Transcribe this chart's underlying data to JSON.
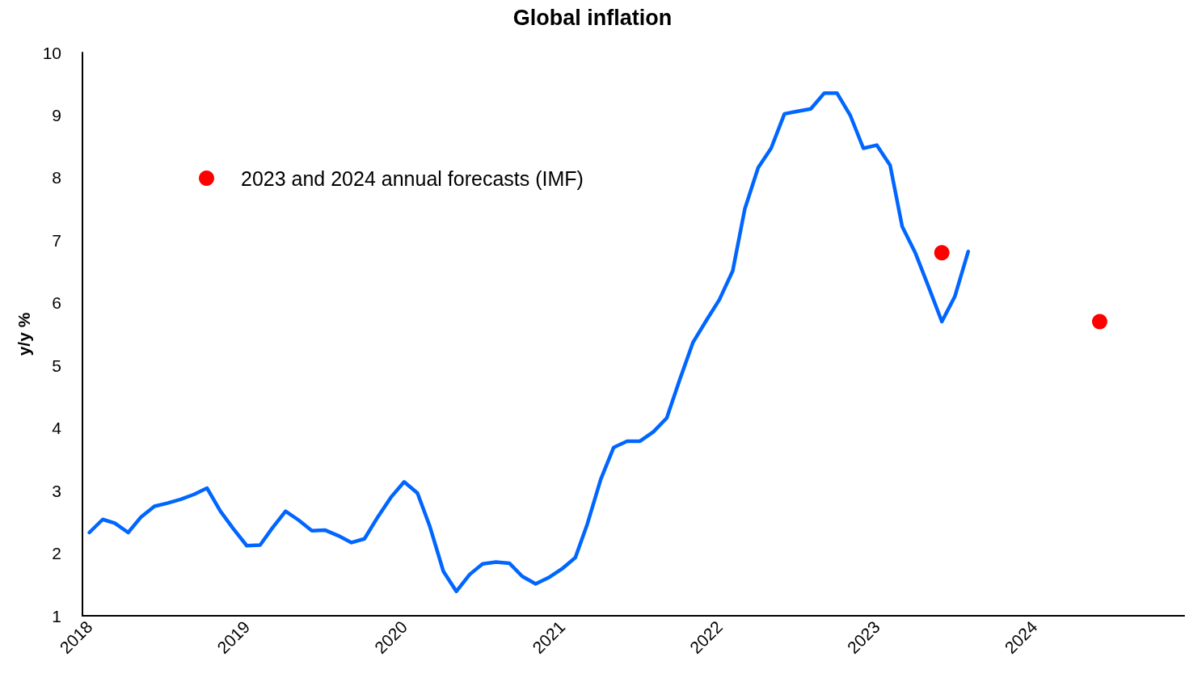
{
  "chart_data": {
    "type": "line",
    "title": "Global inflation",
    "ylabel": "y/y %",
    "x": [
      "2018-01",
      "2018-02",
      "2018-03",
      "2018-04",
      "2018-05",
      "2018-06",
      "2018-07",
      "2018-08",
      "2018-09",
      "2018-10",
      "2018-11",
      "2018-12",
      "2019-01",
      "2019-02",
      "2019-03",
      "2019-04",
      "2019-05",
      "2019-06",
      "2019-07",
      "2019-08",
      "2019-09",
      "2019-10",
      "2019-11",
      "2019-12",
      "2020-01",
      "2020-02",
      "2020-03",
      "2020-04",
      "2020-05",
      "2020-06",
      "2020-07",
      "2020-08",
      "2020-09",
      "2020-10",
      "2020-11",
      "2020-12",
      "2021-01",
      "2021-02",
      "2021-03",
      "2021-04",
      "2021-05",
      "2021-06",
      "2021-07",
      "2021-08",
      "2021-09",
      "2021-10",
      "2021-11",
      "2021-12",
      "2022-01",
      "2022-02",
      "2022-03",
      "2022-04",
      "2022-05",
      "2022-06",
      "2022-07",
      "2022-08",
      "2022-09",
      "2022-10",
      "2022-11",
      "2022-12",
      "2023-01",
      "2023-02",
      "2023-03",
      "2023-04",
      "2023-05",
      "2023-06",
      "2023-07",
      "2023-08"
    ],
    "series": [
      {
        "color": "#0066ff",
        "marker": "none",
        "values": [
          2.33,
          2.54,
          2.48,
          2.33,
          2.58,
          2.75,
          2.8,
          2.86,
          2.94,
          3.04,
          2.67,
          2.39,
          2.12,
          2.13,
          2.4,
          2.67,
          2.53,
          2.36,
          2.37,
          2.28,
          2.17,
          2.23,
          2.58,
          2.89,
          3.14,
          2.96,
          2.42,
          1.71,
          1.39,
          1.66,
          1.83,
          1.86,
          1.84,
          1.63,
          1.51,
          1.61,
          1.75,
          1.93,
          2.47,
          3.18,
          3.69,
          3.79,
          3.79,
          3.94,
          4.16,
          4.77,
          5.37,
          5.71,
          6.05,
          6.51,
          7.5,
          8.16,
          8.47,
          9.02,
          9.06,
          9.1,
          9.35,
          9.35,
          8.99,
          8.47,
          8.52,
          8.2,
          7.22,
          6.79,
          6.26,
          5.7,
          6.1,
          6.82
        ]
      },
      {
        "type": "scatter",
        "name": "2023 and 2024 annual forecasts (IMF)",
        "color": "#ff0000",
        "marker": "circle",
        "x": [
          "2023-06",
          "2024-06"
        ],
        "values": [
          6.8,
          5.7
        ]
      }
    ],
    "xlim": [
      "2017-12-16",
      "2024-12-14"
    ],
    "xticks": [
      "2018",
      "2019",
      "2020",
      "2021",
      "2022",
      "2023",
      "2024"
    ],
    "ylim": [
      1,
      10
    ],
    "yticks": [
      1,
      2,
      3,
      4,
      5,
      6,
      7,
      8,
      9,
      10
    ],
    "legend": "top left"
  }
}
